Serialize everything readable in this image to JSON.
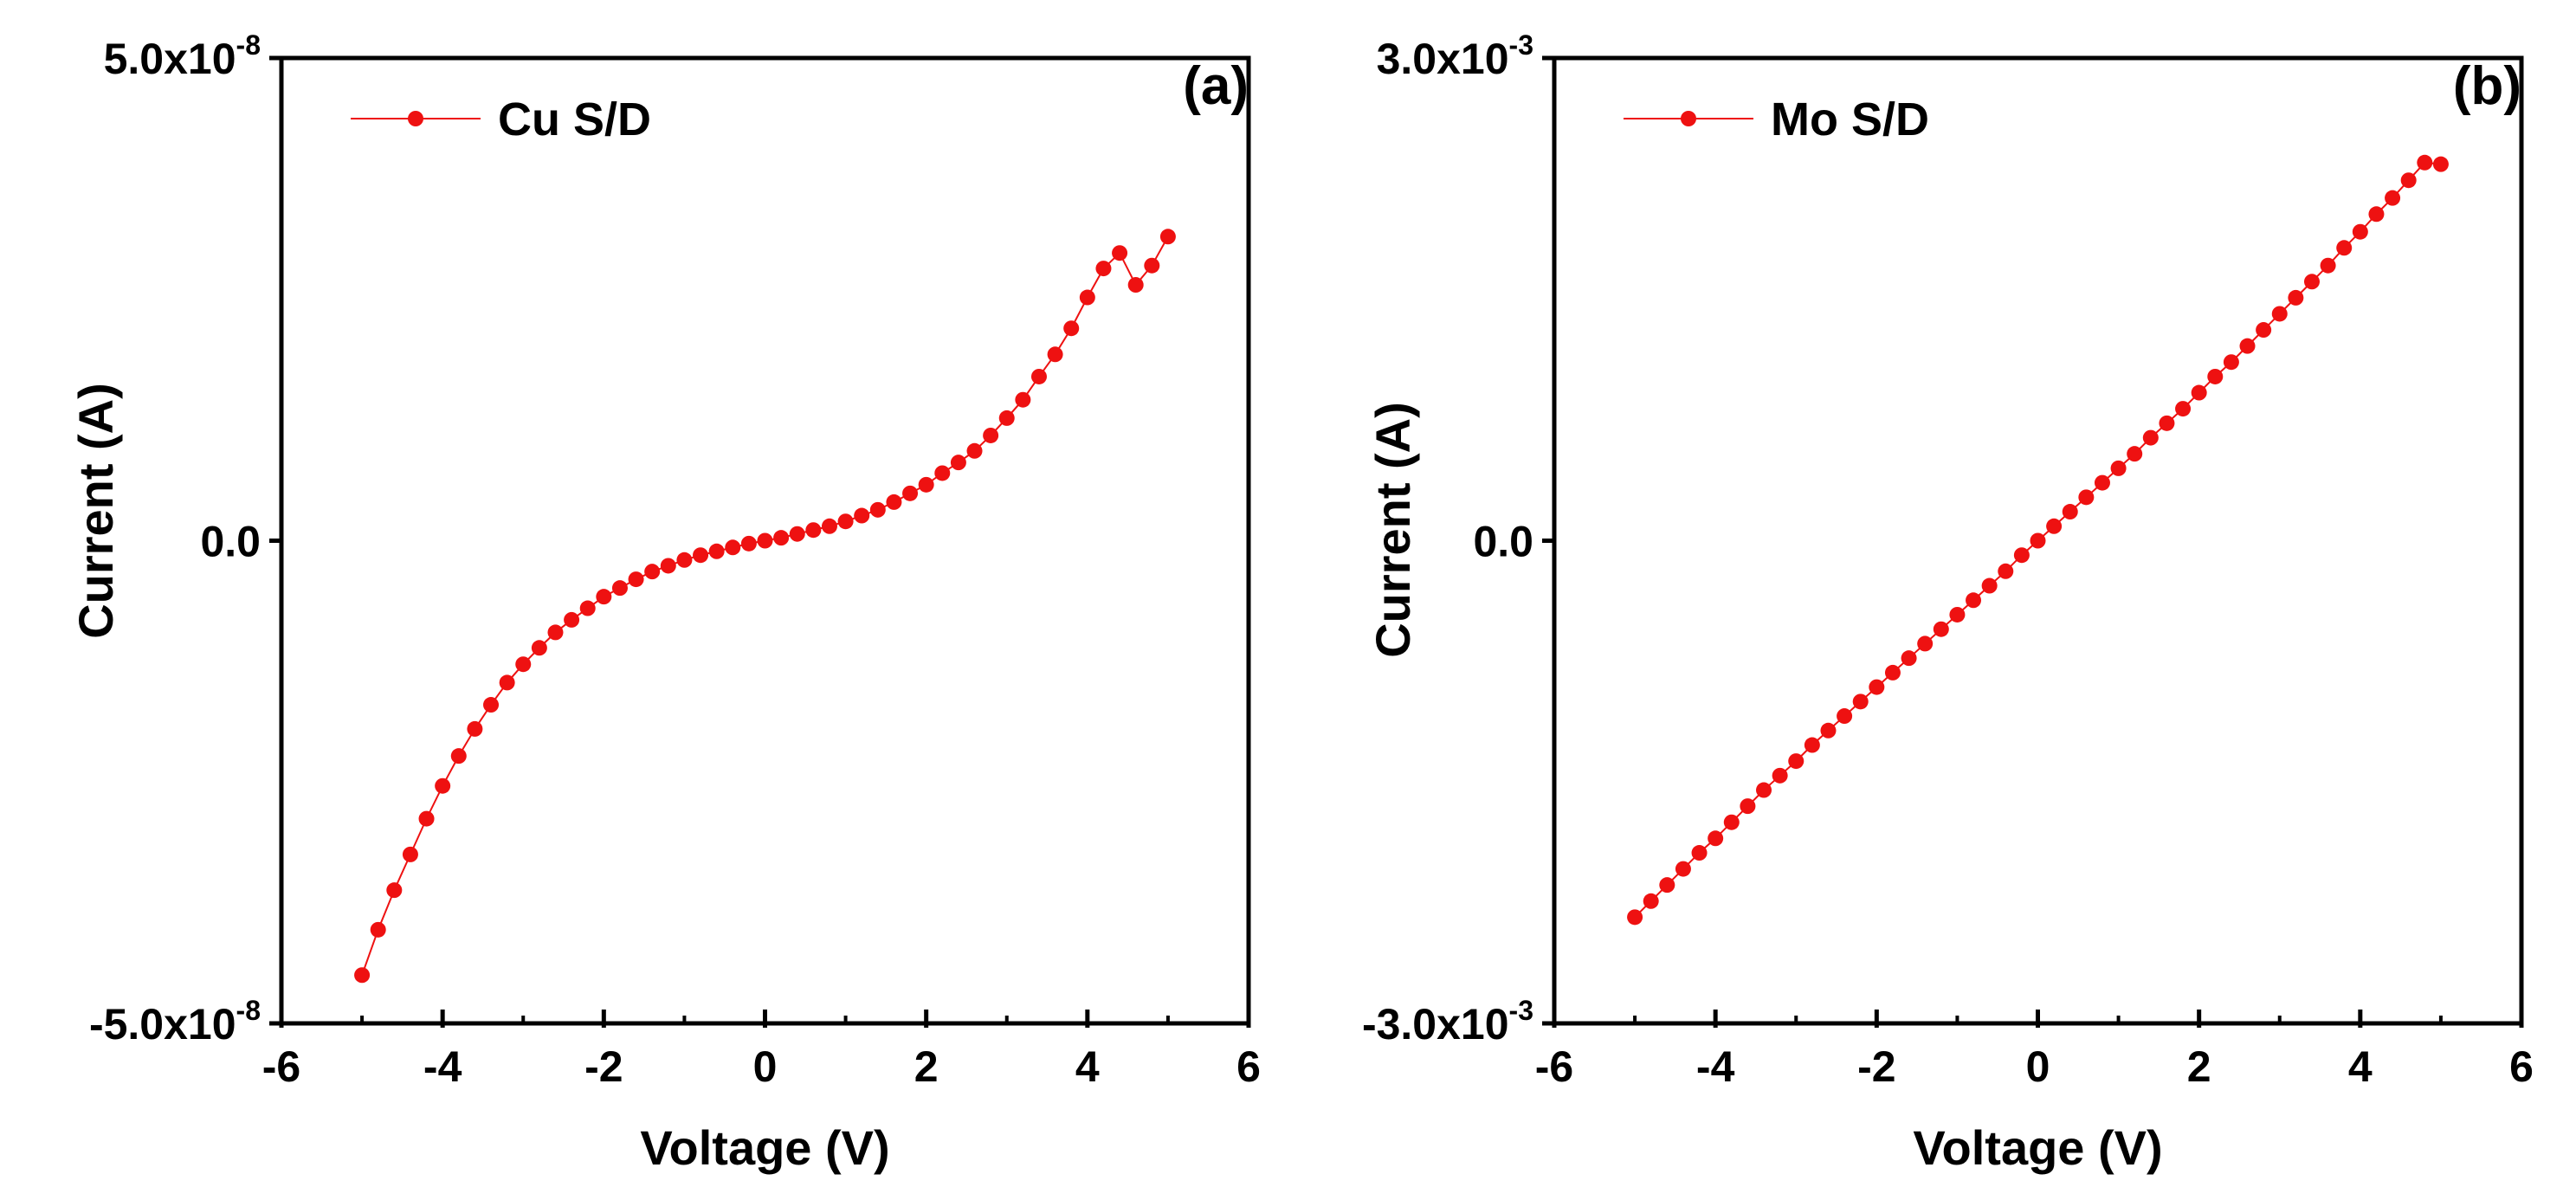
{
  "chart_data": [
    {
      "type": "line",
      "panel_label": "(a)",
      "title": "",
      "xlabel": "Voltage (V)",
      "ylabel": "Current  (A)",
      "xlim": [
        -6,
        6
      ],
      "ylim": [
        -5e-08,
        5e-08
      ],
      "x_ticks": [
        -6,
        -4,
        -2,
        0,
        2,
        4,
        6
      ],
      "x_tick_labels": [
        "-6",
        "-4",
        "-2",
        "0",
        "2",
        "4",
        "6"
      ],
      "y_tick_labels": [
        {
          "mantissa": "5.0x10",
          "exponent": "-8",
          "value": 5e-08
        },
        {
          "mantissa": "0.0",
          "exponent": "",
          "value": 0
        },
        {
          "mantissa": "-5.0x10",
          "exponent": "-8",
          "value": -5e-08
        }
      ],
      "grid": false,
      "legend_position": "top-left",
      "series": [
        {
          "name": "Cu S/D",
          "color": "#ee1111",
          "marker": "circle",
          "x": [
            -5.0,
            -4.8,
            -4.6,
            -4.4,
            -4.2,
            -4.0,
            -3.8,
            -3.6,
            -3.4,
            -3.2,
            -3.0,
            -2.8,
            -2.6,
            -2.4,
            -2.2,
            -2.0,
            -1.8,
            -1.6,
            -1.4,
            -1.2,
            -1.0,
            -0.8,
            -0.6,
            -0.4,
            -0.2,
            0.0,
            0.2,
            0.4,
            0.6,
            0.8,
            1.0,
            1.2,
            1.4,
            1.6,
            1.8,
            2.0,
            2.2,
            2.4,
            2.6,
            2.8,
            3.0,
            3.2,
            3.4,
            3.6,
            3.8,
            4.0,
            4.2,
            4.4,
            4.6,
            4.8,
            5.0
          ],
          "values": [
            -4.5e-08,
            -4.03e-08,
            -3.62e-08,
            -3.25e-08,
            -2.88e-08,
            -2.54e-08,
            -2.23e-08,
            -1.95e-08,
            -1.7e-08,
            -1.47e-08,
            -1.28e-08,
            -1.11e-08,
            -9.5e-09,
            -8.2e-09,
            -7e-09,
            -5.8e-09,
            -4.9e-09,
            -4e-09,
            -3.2e-09,
            -2.6e-09,
            -2e-09,
            -1.5e-09,
            -1.1e-09,
            -7e-10,
            -3e-10,
            0,
            3e-10,
            7e-10,
            1.1e-09,
            1.5e-09,
            2e-09,
            2.6e-09,
            3.2e-09,
            4e-09,
            4.9e-09,
            5.8e-09,
            7e-09,
            8.1e-09,
            9.3e-09,
            1.09e-08,
            1.27e-08,
            1.46e-08,
            1.7e-08,
            1.93e-08,
            2.2e-08,
            2.52e-08,
            2.82e-08,
            2.98e-08,
            2.65e-08,
            2.85e-08,
            3.15e-08
          ]
        }
      ]
    },
    {
      "type": "line",
      "panel_label": "(b)",
      "title": "",
      "xlabel": "Voltage (V)",
      "ylabel": "Current (A)",
      "xlim": [
        -6,
        6
      ],
      "ylim": [
        -0.003,
        0.003
      ],
      "x_ticks": [
        -6,
        -4,
        -2,
        0,
        2,
        4,
        6
      ],
      "x_tick_labels": [
        "-6",
        "-4",
        "-2",
        "0",
        "2",
        "4",
        "6"
      ],
      "y_tick_labels": [
        {
          "mantissa": "3.0x10",
          "exponent": "-3",
          "value": 0.003
        },
        {
          "mantissa": "0.0",
          "exponent": "",
          "value": 0
        },
        {
          "mantissa": "-3.0x10",
          "exponent": "-3",
          "value": -0.003
        }
      ],
      "grid": false,
      "legend_position": "top-left",
      "series": [
        {
          "name": "Mo S/D",
          "color": "#ee1111",
          "marker": "circle",
          "x": [
            -5.0,
            -4.8,
            -4.6,
            -4.4,
            -4.2,
            -4.0,
            -3.8,
            -3.6,
            -3.4,
            -3.2,
            -3.0,
            -2.8,
            -2.6,
            -2.4,
            -2.2,
            -2.0,
            -1.8,
            -1.6,
            -1.4,
            -1.2,
            -1.0,
            -0.8,
            -0.6,
            -0.4,
            -0.2,
            0.0,
            0.2,
            0.4,
            0.6,
            0.8,
            1.0,
            1.2,
            1.4,
            1.6,
            1.8,
            2.0,
            2.2,
            2.4,
            2.6,
            2.8,
            3.0,
            3.2,
            3.4,
            3.6,
            3.8,
            4.0,
            4.2,
            4.4,
            4.6,
            4.8,
            5.0
          ],
          "values": [
            -0.00234,
            -0.00224,
            -0.00214,
            -0.00204,
            -0.00194,
            -0.00185,
            -0.00175,
            -0.00165,
            -0.00155,
            -0.00146,
            -0.00137,
            -0.00127,
            -0.00118,
            -0.00109,
            -0.001,
            -0.00091,
            -0.00082,
            -0.00073,
            -0.00064,
            -0.00055,
            -0.00046,
            -0.00037,
            -0.00028,
            -0.00019,
            -9e-05,
            0,
            9e-05,
            0.00018,
            0.00027,
            0.00036,
            0.00045,
            0.00054,
            0.00064,
            0.00073,
            0.00082,
            0.00092,
            0.00102,
            0.00111,
            0.00121,
            0.00131,
            0.00141,
            0.00151,
            0.00161,
            0.00171,
            0.00182,
            0.00192,
            0.00203,
            0.00213,
            0.00224,
            0.00235,
            0.00234
          ]
        }
      ]
    }
  ]
}
